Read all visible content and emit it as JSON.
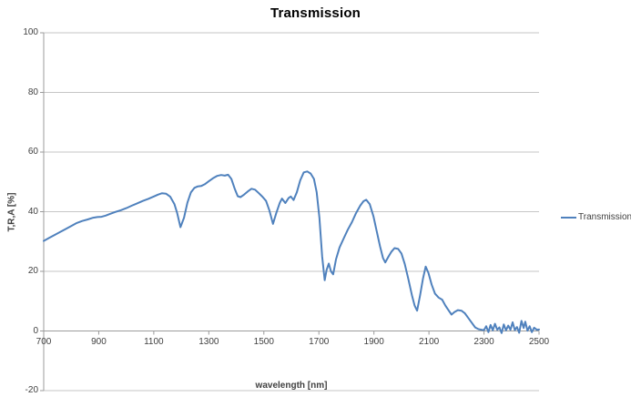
{
  "chart_data": {
    "type": "line",
    "title": "Transmission",
    "xlabel": "wavelength [nm]",
    "ylabel": "T,R,A [%]",
    "xlim": [
      700,
      2500
    ],
    "ylim": [
      -20,
      100
    ],
    "x_ticks": [
      700,
      900,
      1100,
      1300,
      1500,
      1700,
      1900,
      2100,
      2300,
      2500
    ],
    "y_ticks": [
      100,
      80,
      60,
      40,
      20,
      0,
      -20
    ],
    "grid": "horizontal-only",
    "legend_position": "right",
    "series": [
      {
        "name": "Transmission",
        "points": [
          [
            700,
            30.2
          ],
          [
            720,
            31.2
          ],
          [
            740,
            32.2
          ],
          [
            760,
            33.2
          ],
          [
            780,
            34.2
          ],
          [
            800,
            35.2
          ],
          [
            820,
            36.2
          ],
          [
            840,
            36.9
          ],
          [
            860,
            37.4
          ],
          [
            880,
            38.0
          ],
          [
            895,
            38.2
          ],
          [
            910,
            38.3
          ],
          [
            925,
            38.7
          ],
          [
            940,
            39.2
          ],
          [
            960,
            39.9
          ],
          [
            980,
            40.5
          ],
          [
            1000,
            41.2
          ],
          [
            1020,
            42.0
          ],
          [
            1040,
            42.8
          ],
          [
            1060,
            43.6
          ],
          [
            1080,
            44.3
          ],
          [
            1100,
            45.1
          ],
          [
            1115,
            45.7
          ],
          [
            1130,
            46.2
          ],
          [
            1145,
            46.0
          ],
          [
            1160,
            45.0
          ],
          [
            1175,
            42.5
          ],
          [
            1185,
            39.5
          ],
          [
            1197,
            34.8
          ],
          [
            1210,
            38.0
          ],
          [
            1222,
            43.0
          ],
          [
            1235,
            46.5
          ],
          [
            1248,
            48.0
          ],
          [
            1260,
            48.5
          ],
          [
            1272,
            48.6
          ],
          [
            1285,
            49.2
          ],
          [
            1300,
            50.2
          ],
          [
            1315,
            51.2
          ],
          [
            1330,
            52.0
          ],
          [
            1345,
            52.3
          ],
          [
            1358,
            52.1
          ],
          [
            1370,
            52.4
          ],
          [
            1382,
            51.0
          ],
          [
            1395,
            47.5
          ],
          [
            1405,
            45.2
          ],
          [
            1415,
            44.9
          ],
          [
            1428,
            45.7
          ],
          [
            1442,
            46.8
          ],
          [
            1455,
            47.7
          ],
          [
            1468,
            47.4
          ],
          [
            1482,
            46.2
          ],
          [
            1495,
            45.0
          ],
          [
            1508,
            43.6
          ],
          [
            1520,
            40.5
          ],
          [
            1533,
            35.9
          ],
          [
            1545,
            39.5
          ],
          [
            1558,
            43.0
          ],
          [
            1566,
            44.4
          ],
          [
            1578,
            42.9
          ],
          [
            1590,
            44.6
          ],
          [
            1598,
            45.1
          ],
          [
            1608,
            43.9
          ],
          [
            1620,
            46.5
          ],
          [
            1632,
            50.5
          ],
          [
            1645,
            53.2
          ],
          [
            1658,
            53.5
          ],
          [
            1670,
            52.8
          ],
          [
            1682,
            51.0
          ],
          [
            1692,
            46.5
          ],
          [
            1702,
            38.0
          ],
          [
            1712,
            25.0
          ],
          [
            1721,
            17.0
          ],
          [
            1728,
            20.5
          ],
          [
            1736,
            22.6
          ],
          [
            1744,
            20.0
          ],
          [
            1752,
            19.0
          ],
          [
            1762,
            24.0
          ],
          [
            1775,
            28.0
          ],
          [
            1790,
            31.0
          ],
          [
            1805,
            34.0
          ],
          [
            1820,
            36.5
          ],
          [
            1835,
            39.5
          ],
          [
            1850,
            42.0
          ],
          [
            1862,
            43.5
          ],
          [
            1872,
            44.0
          ],
          [
            1885,
            42.5
          ],
          [
            1898,
            38.5
          ],
          [
            1910,
            33.5
          ],
          [
            1922,
            28.5
          ],
          [
            1933,
            24.5
          ],
          [
            1941,
            23.0
          ],
          [
            1952,
            24.8
          ],
          [
            1963,
            26.5
          ],
          [
            1975,
            27.8
          ],
          [
            1988,
            27.5
          ],
          [
            2000,
            26.0
          ],
          [
            2012,
            22.5
          ],
          [
            2025,
            17.5
          ],
          [
            2038,
            12.0
          ],
          [
            2048,
            8.5
          ],
          [
            2057,
            6.8
          ],
          [
            2068,
            12.0
          ],
          [
            2078,
            17.5
          ],
          [
            2088,
            21.6
          ],
          [
            2098,
            19.5
          ],
          [
            2110,
            15.5
          ],
          [
            2122,
            12.5
          ],
          [
            2135,
            11.2
          ],
          [
            2148,
            10.5
          ],
          [
            2160,
            8.5
          ],
          [
            2172,
            6.8
          ],
          [
            2182,
            5.5
          ],
          [
            2192,
            6.3
          ],
          [
            2205,
            7.0
          ],
          [
            2218,
            6.8
          ],
          [
            2230,
            6.0
          ],
          [
            2242,
            4.5
          ],
          [
            2255,
            2.8
          ],
          [
            2268,
            1.2
          ],
          [
            2280,
            0.6
          ],
          [
            2292,
            0.4
          ],
          [
            2300,
            0.3
          ],
          [
            2308,
            1.6
          ],
          [
            2316,
            -0.4
          ],
          [
            2324,
            2.0
          ],
          [
            2332,
            0.2
          ],
          [
            2340,
            2.4
          ],
          [
            2348,
            0.4
          ],
          [
            2356,
            1.2
          ],
          [
            2364,
            -0.7
          ],
          [
            2372,
            2.2
          ],
          [
            2380,
            0.2
          ],
          [
            2388,
            1.8
          ],
          [
            2396,
            0.4
          ],
          [
            2404,
            2.9
          ],
          [
            2412,
            0.3
          ],
          [
            2420,
            1.3
          ],
          [
            2428,
            -0.6
          ],
          [
            2436,
            3.4
          ],
          [
            2444,
            1.0
          ],
          [
            2450,
            3.1
          ],
          [
            2458,
            0.1
          ],
          [
            2466,
            1.6
          ],
          [
            2474,
            -0.4
          ],
          [
            2482,
            1.1
          ],
          [
            2492,
            0.4
          ],
          [
            2500,
            0.5
          ]
        ]
      }
    ],
    "legend": [
      "Transmission"
    ],
    "colors": {
      "accent": "#4F81BD",
      "gridline": "#C6C6C6",
      "axis": "#9B9B9B",
      "text": "#3F3F3F",
      "title": "#000000",
      "background": "#FFFFFF"
    }
  }
}
